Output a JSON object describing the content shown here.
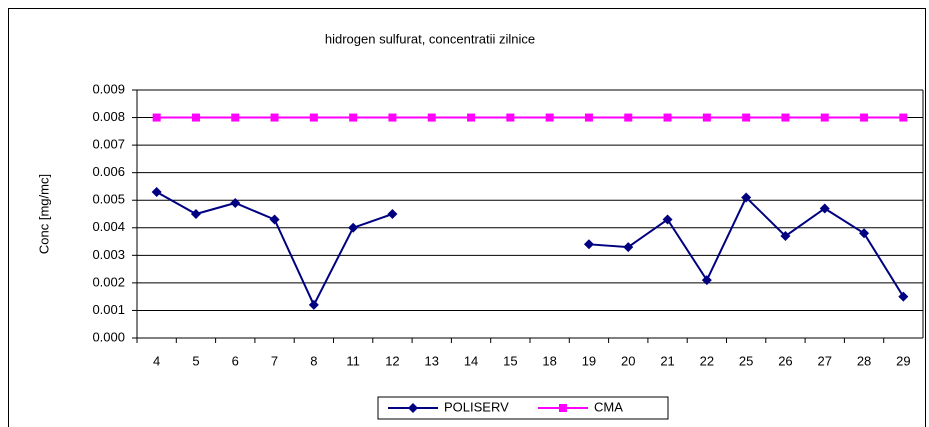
{
  "chart_data": {
    "type": "line",
    "title": "hidrogen sulfurat, concentratii zilnice",
    "y_label": "Conc [mg/mc]",
    "categories": [
      "4",
      "5",
      "6",
      "7",
      "8",
      "11",
      "12",
      "13",
      "14",
      "15",
      "18",
      "19",
      "20",
      "21",
      "22",
      "25",
      "26",
      "27",
      "28",
      "29"
    ],
    "series": [
      {
        "name": "POLISERV",
        "color": "#000080",
        "marker": "diamond",
        "values": [
          0.0053,
          0.0045,
          0.0049,
          0.0043,
          0.0012,
          0.004,
          0.0045,
          null,
          null,
          null,
          null,
          0.0034,
          0.0033,
          0.0043,
          0.0021,
          0.0051,
          0.0037,
          0.0047,
          0.0038,
          0.0015
        ]
      },
      {
        "name": "CMA",
        "color": "#FF00FF",
        "marker": "square",
        "values": [
          0.008,
          0.008,
          0.008,
          0.008,
          0.008,
          0.008,
          0.008,
          0.008,
          0.008,
          0.008,
          0.008,
          0.008,
          0.008,
          0.008,
          0.008,
          0.008,
          0.008,
          0.008,
          0.008,
          0.008
        ]
      }
    ],
    "ylim": [
      0,
      0.009
    ],
    "yticks": [
      {
        "value": 0,
        "label": "0.000"
      },
      0.001,
      0.002,
      0.003,
      0.004,
      0.005,
      0.006,
      0.007,
      0.008,
      0.009
    ],
    "grid": true,
    "legend": "bottom"
  }
}
